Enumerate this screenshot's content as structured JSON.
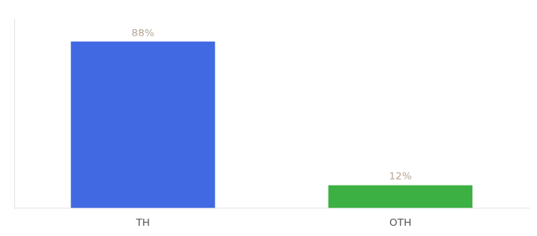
{
  "chart_data": {
    "type": "bar",
    "categories": [
      "TH",
      "OTH"
    ],
    "values": [
      88,
      12
    ],
    "value_labels": [
      "88%",
      "12%"
    ],
    "colors": [
      "#4169e1",
      "#3cb043"
    ],
    "ylim": [
      0,
      100
    ],
    "grid": false,
    "data_labels": true,
    "tick_labels": "x"
  }
}
